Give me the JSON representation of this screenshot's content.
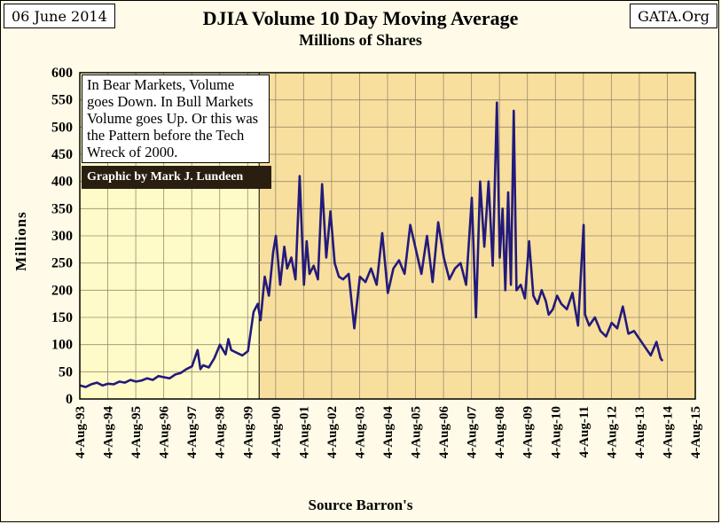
{
  "header": {
    "date": "06 June 2014",
    "source_site": "GATA.Org"
  },
  "annotation": {
    "note": "In Bear Markets, Volume goes Down. In Bull Markets Volume goes Up. Or this was the Pattern before the Tech Wreck of 2000.",
    "credit": "Graphic by Mark J. Lundeen"
  },
  "colors": {
    "bull_zone": "#fffbc9",
    "bear_zone": "#f8df9e",
    "line": "#231a7a",
    "grid": "#9a8c6a"
  },
  "chart_data": {
    "type": "line",
    "title": "DJIA Volume 10 Day Moving Average",
    "subtitle": "Millions of Shares",
    "ylabel": "Millions",
    "xlabel": "Source Barron's",
    "ylim": [
      0,
      600
    ],
    "yticks": [
      0,
      50,
      100,
      150,
      200,
      250,
      300,
      350,
      400,
      450,
      500,
      550,
      600
    ],
    "xlim": [
      1993.59,
      2015.59
    ],
    "xtick_labels": [
      "4-Aug-93",
      "4-Aug-94",
      "4-Aug-95",
      "4-Aug-96",
      "4-Aug-97",
      "4-Aug-98",
      "4-Aug-99",
      "4-Aug-00",
      "4-Aug-01",
      "4-Aug-02",
      "4-Aug-03",
      "4-Aug-04",
      "4-Aug-05",
      "4-Aug-06",
      "4-Aug-07",
      "4-Aug-08",
      "4-Aug-09",
      "4-Aug-10",
      "4-Aug-11",
      "4-Aug-12",
      "4-Aug-13",
      "4-Aug-14",
      "4-Aug-15"
    ],
    "grid": true,
    "shaded_regions": [
      {
        "from": 1993.59,
        "to": 2000.0,
        "color": "#fffbc9"
      },
      {
        "from": 2000.0,
        "to": 2015.59,
        "color": "#f8df9e"
      }
    ],
    "series": [
      {
        "x": [
          1993.6,
          1993.8,
          1994.0,
          1994.2,
          1994.4,
          1994.6,
          1994.8,
          1995.0,
          1995.2,
          1995.4,
          1995.6,
          1995.8,
          1996.0,
          1996.2,
          1996.4,
          1996.6,
          1996.8,
          1997.0,
          1997.2,
          1997.4,
          1997.6,
          1997.8,
          1997.9,
          1998.0,
          1998.2,
          1998.4,
          1998.6,
          1998.8,
          1998.9,
          1999.0,
          1999.2,
          1999.4,
          1999.6,
          1999.8,
          1999.95,
          2000.05,
          2000.2,
          2000.35,
          2000.5,
          2000.6,
          2000.75,
          2000.9,
          2001.0,
          2001.15,
          2001.3,
          2001.45,
          2001.6,
          2001.7,
          2001.8,
          2001.95,
          2002.1,
          2002.25,
          2002.4,
          2002.55,
          2002.7,
          2002.85,
          2003.0,
          2003.2,
          2003.4,
          2003.6,
          2003.8,
          2004.0,
          2004.2,
          2004.4,
          2004.6,
          2004.8,
          2005.0,
          2005.2,
          2005.4,
          2005.6,
          2005.8,
          2006.0,
          2006.2,
          2006.4,
          2006.6,
          2006.8,
          2007.0,
          2007.2,
          2007.4,
          2007.6,
          2007.75,
          2007.9,
          2008.05,
          2008.2,
          2008.35,
          2008.5,
          2008.6,
          2008.7,
          2008.8,
          2008.9,
          2009.0,
          2009.1,
          2009.2,
          2009.35,
          2009.5,
          2009.65,
          2009.8,
          2009.95,
          2010.1,
          2010.25,
          2010.35,
          2010.5,
          2010.65,
          2010.8,
          2011.0,
          2011.2,
          2011.4,
          2011.6,
          2011.65,
          2011.8,
          2012.0,
          2012.2,
          2012.4,
          2012.6,
          2012.8,
          2013.0,
          2013.2,
          2013.4,
          2013.6,
          2013.8,
          2014.0,
          2014.2,
          2014.35,
          2014.42
        ],
        "values": [
          25,
          22,
          27,
          30,
          25,
          28,
          27,
          32,
          30,
          35,
          32,
          34,
          38,
          35,
          42,
          40,
          38,
          45,
          48,
          55,
          60,
          90,
          55,
          62,
          58,
          75,
          100,
          82,
          110,
          90,
          85,
          80,
          88,
          160,
          175,
          145,
          225,
          190,
          270,
          300,
          210,
          280,
          240,
          260,
          220,
          410,
          210,
          290,
          230,
          245,
          220,
          395,
          260,
          345,
          250,
          225,
          220,
          230,
          130,
          225,
          215,
          240,
          210,
          305,
          195,
          240,
          255,
          230,
          320,
          275,
          230,
          300,
          215,
          325,
          260,
          220,
          240,
          250,
          210,
          370,
          150,
          400,
          280,
          400,
          245,
          545,
          260,
          350,
          200,
          380,
          210,
          530,
          200,
          210,
          185,
          290,
          190,
          175,
          200,
          180,
          155,
          165,
          190,
          175,
          165,
          195,
          135,
          320,
          155,
          135,
          150,
          125,
          115,
          140,
          130,
          170,
          120,
          125,
          110,
          95,
          80,
          105,
          75,
          70
        ]
      }
    ]
  }
}
